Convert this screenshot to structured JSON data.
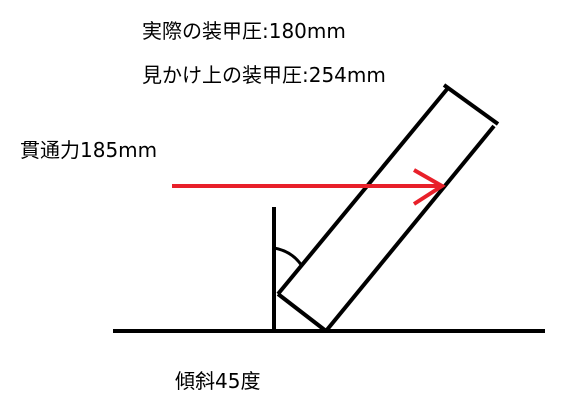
{
  "labels": {
    "actual_armor": "実際の装甲圧:180mm",
    "apparent_armor": "見かけ上の装甲圧:254mm",
    "penetration": "貫通力185mm",
    "slope": "傾斜45度"
  },
  "values": {
    "actual_armor_mm": 180,
    "apparent_armor_mm": 254,
    "penetration_mm": 185,
    "slope_deg": 45
  },
  "colors": {
    "line": "#000000",
    "arrow": "#e8202a",
    "background": "#ffffff"
  }
}
